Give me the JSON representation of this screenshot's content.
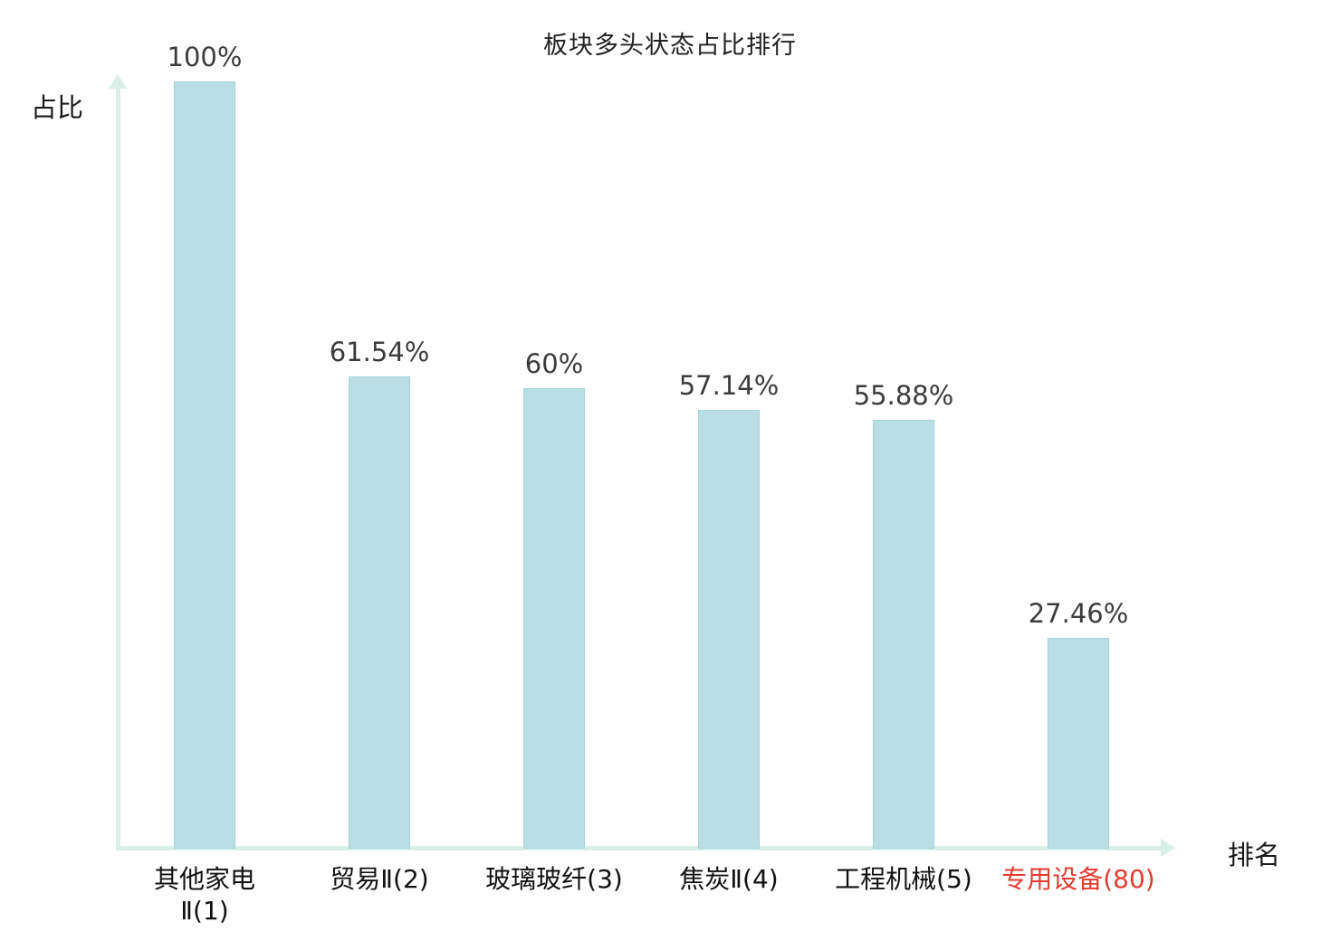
{
  "chart_data": {
    "type": "bar",
    "title": "板块多头状态占比排行",
    "xlabel": "排名",
    "ylabel": "占比",
    "categories": [
      "其他家电Ⅱ(1)",
      "贸易Ⅱ(2)",
      "玻璃玻纤(3)",
      "焦炭Ⅱ(4)",
      "工程机械(5)",
      "专用设备(80)"
    ],
    "values": [
      100,
      61.54,
      60,
      57.14,
      55.88,
      27.46
    ],
    "value_labels": [
      "100%",
      "61.54%",
      "60%",
      "57.14%",
      "55.88%",
      "27.46%"
    ],
    "category_lines": [
      [
        "其他家电",
        "Ⅱ(1)"
      ],
      [
        "贸易Ⅱ(2)"
      ],
      [
        "玻璃玻纤(3)"
      ],
      [
        "焦炭Ⅱ(4)"
      ],
      [
        "工程机械(5)"
      ],
      [
        "专用设备(80)"
      ]
    ],
    "highlight_index": 5,
    "ylim": [
      0,
      100
    ],
    "grid": false,
    "legend": "none",
    "colors": {
      "bar_fill": "#b9dee3",
      "bar_border": "#a5d2d8",
      "axis": "#d9efe8",
      "value_label": "#3c3c3c",
      "highlight_label": "#e43b30"
    }
  }
}
